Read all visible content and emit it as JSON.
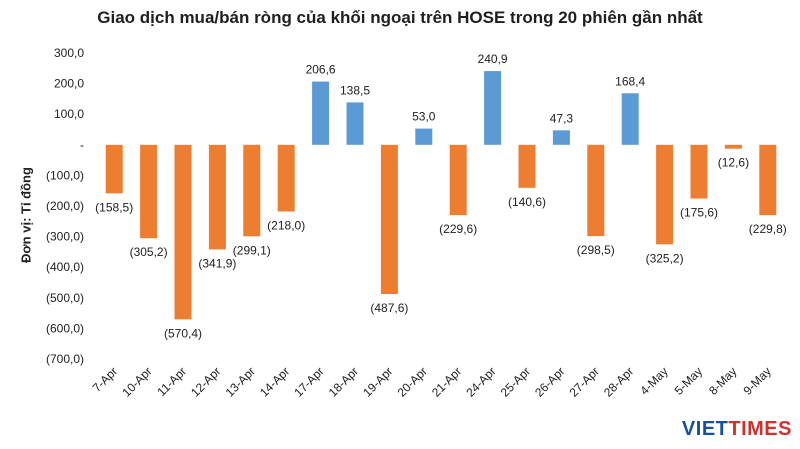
{
  "logo": {
    "part1": "VIET",
    "part2": "TIMES"
  },
  "colors": {
    "positive": "#5b9bd5",
    "negative": "#ed7d31"
  },
  "chart_data": {
    "type": "bar",
    "title": "Giao dịch mua/bán ròng của khối ngoại trên HOSE trong 20 phiên gần nhất",
    "ylabel": "Đơn vị: Tỉ đồng",
    "xlabel": "",
    "ylim": [
      -700,
      300
    ],
    "yticks": [
      300,
      200,
      100,
      0,
      -100,
      -200,
      -300,
      -400,
      -500,
      -600,
      -700
    ],
    "ytick_labels": [
      "300,0",
      "200,0",
      "100,0",
      "-",
      "(100,0)",
      "(200,0)",
      "(300,0)",
      "(400,0)",
      "(500,0)",
      "(600,0)",
      "(700,0)"
    ],
    "grid": false,
    "categories": [
      "7-Apr",
      "10-Apr",
      "11-Apr",
      "12-Apr",
      "13-Apr",
      "14-Apr",
      "17-Apr",
      "18-Apr",
      "19-Apr",
      "20-Apr",
      "21-Apr",
      "24-Apr",
      "25-Apr",
      "26-Apr",
      "27-Apr",
      "28-Apr",
      "4-May",
      "5-May",
      "8-May",
      "9-May"
    ],
    "values": [
      -158.5,
      -305.2,
      -570.4,
      -341.9,
      -299.1,
      -218.0,
      206.6,
      138.5,
      -487.6,
      53.0,
      -229.6,
      240.9,
      -140.6,
      47.3,
      -298.5,
      168.4,
      -325.2,
      -175.6,
      -12.6,
      -229.8
    ],
    "value_labels": [
      "(158,5)",
      "(305,2)",
      "(570,4)",
      "(341,9)",
      "(299,1)",
      "(218,0)",
      "206,6",
      "138,5",
      "(487,6)",
      "53,0",
      "(229,6)",
      "240,9",
      "(140,6)",
      "47,3",
      "(298,5)",
      "168,4",
      "(325,2)",
      "(175,6)",
      "(12,6)",
      "(229,8)"
    ]
  }
}
